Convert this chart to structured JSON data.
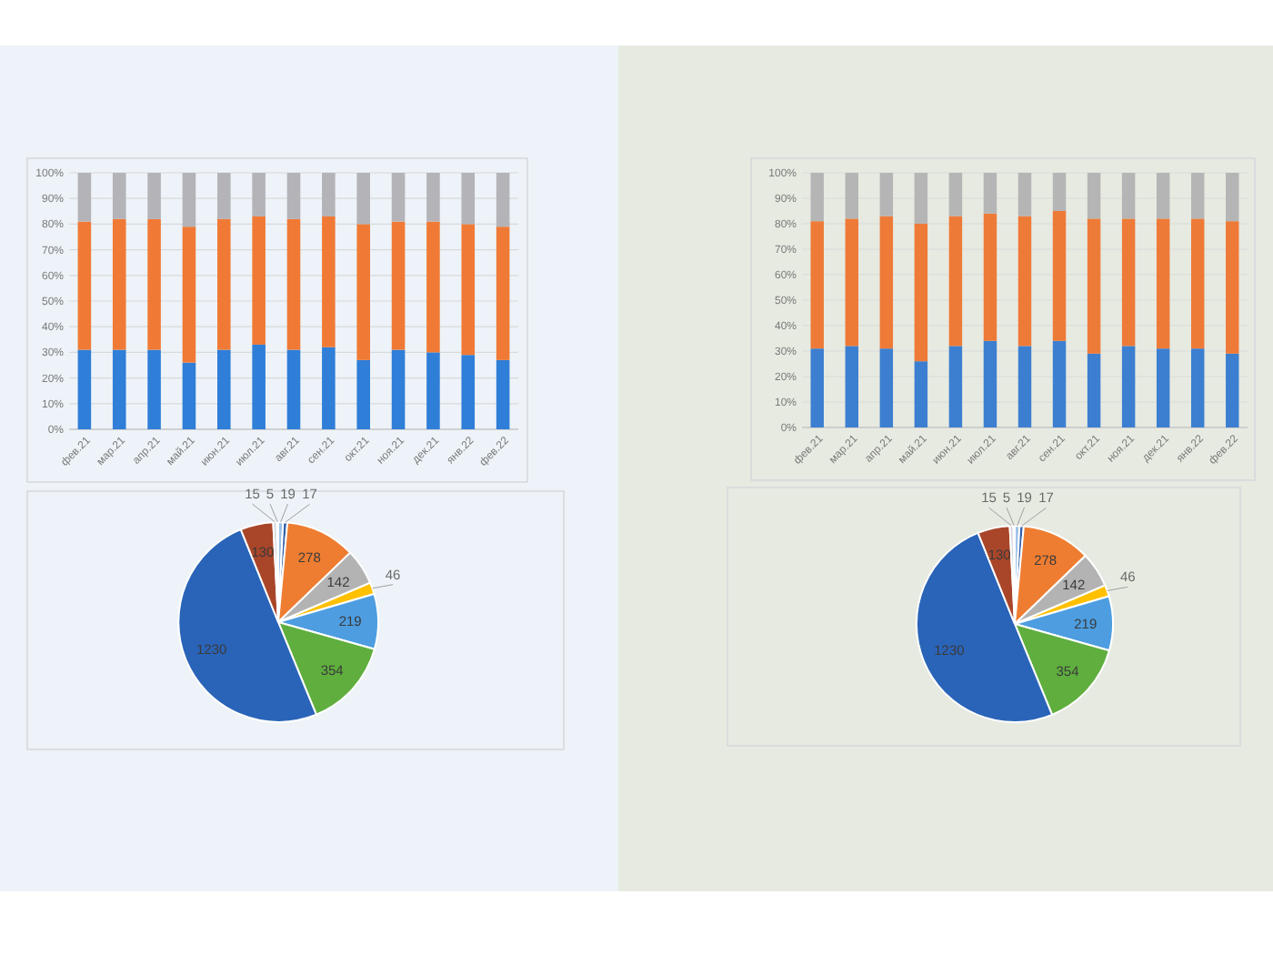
{
  "chart_data": [
    {
      "type": "bar",
      "stacked": true,
      "categories": [
        "фев.21",
        "мар.21",
        "апр.21",
        "май.21",
        "июн.21",
        "июл.21",
        "авг.21",
        "сен.21",
        "окт.21",
        "ноя.21",
        "дек.21",
        "янв.22",
        "фев.22"
      ],
      "series": [
        {
          "color": "#2f7ed8",
          "values": [
            31,
            31,
            31,
            26,
            31,
            33,
            31,
            32,
            27,
            31,
            30,
            29,
            27
          ]
        },
        {
          "color": "#f07a35",
          "values": [
            50,
            51,
            51,
            53,
            51,
            50,
            51,
            51,
            53,
            50,
            51,
            51,
            52
          ]
        },
        {
          "color": "#b3b3b8",
          "values": [
            19,
            18,
            18,
            21,
            18,
            17,
            18,
            17,
            20,
            19,
            19,
            20,
            21
          ]
        }
      ],
      "ylim": [
        0,
        100
      ],
      "yticks": [
        {
          "value": 0,
          "label": "0%"
        },
        {
          "value": 10,
          "label": "10%"
        },
        {
          "value": 20,
          "label": "20%"
        },
        {
          "value": 30,
          "label": "30%"
        },
        {
          "value": 40,
          "label": "40%"
        },
        {
          "value": 50,
          "label": "50%"
        },
        {
          "value": 60,
          "label": "60%"
        },
        {
          "value": 70,
          "label": "70%"
        },
        {
          "value": 80,
          "label": "80%"
        },
        {
          "value": 90,
          "label": "90%"
        },
        {
          "value": 100,
          "label": "100%"
        }
      ],
      "grid": "y"
    },
    {
      "type": "pie",
      "categories": [
        null,
        null,
        null,
        null,
        null,
        null,
        null,
        null,
        null,
        null,
        null
      ],
      "values": [
        19,
        17,
        278,
        142,
        46,
        219,
        354,
        1230,
        130,
        15,
        5
      ],
      "colors": [
        "#9fc3e8",
        "#2d5faa",
        "#ee7d32",
        "#b3b3b3",
        "#ffc000",
        "#4d9de0",
        "#5fae3e",
        "#2a64b8",
        "#a9462a",
        "#d2d6dc",
        "#c3cfdd"
      ],
      "data_labels": true
    },
    {
      "type": "bar",
      "stacked": true,
      "categories": [
        "фев.21",
        "мар.21",
        "апр.21",
        "май.21",
        "июн.21",
        "июл.21",
        "авг.21",
        "сен.21",
        "окт.21",
        "ноя.21",
        "дек.21",
        "янв.22",
        "фев.22"
      ],
      "series": [
        {
          "color": "#3c7fd0",
          "values": [
            31,
            32,
            31,
            26,
            32,
            34,
            32,
            34,
            29,
            32,
            31,
            31,
            29
          ]
        },
        {
          "color": "#ee7a38",
          "values": [
            50,
            50,
            52,
            54,
            51,
            50,
            51,
            51,
            53,
            50,
            51,
            51,
            52
          ]
        },
        {
          "color": "#b5b5b5",
          "values": [
            19,
            18,
            17,
            20,
            17,
            16,
            17,
            15,
            18,
            18,
            18,
            18,
            19
          ]
        }
      ],
      "ylim": [
        0,
        100
      ],
      "yticks": [
        {
          "value": 0,
          "label": "0%"
        },
        {
          "value": 10,
          "label": "10%"
        },
        {
          "value": 20,
          "label": "20%"
        },
        {
          "value": 30,
          "label": "30%"
        },
        {
          "value": 40,
          "label": "40%"
        },
        {
          "value": 50,
          "label": "50%"
        },
        {
          "value": 60,
          "label": "60%"
        },
        {
          "value": 70,
          "label": "70%"
        },
        {
          "value": 80,
          "label": "80%"
        },
        {
          "value": 90,
          "label": "90%"
        },
        {
          "value": 100,
          "label": "100%"
        }
      ],
      "grid": "y"
    },
    {
      "type": "pie",
      "categories": [
        null,
        null,
        null,
        null,
        null,
        null,
        null,
        null,
        null,
        null,
        null
      ],
      "values": [
        19,
        17,
        278,
        142,
        46,
        219,
        354,
        1230,
        130,
        15,
        5
      ],
      "colors": [
        "#9fc3e8",
        "#2d5faa",
        "#ee7d32",
        "#b3b3b3",
        "#ffc000",
        "#4d9de0",
        "#5fae3e",
        "#2a64b8",
        "#a9462a",
        "#d2d6dc",
        "#c3cfdd"
      ],
      "data_labels": true
    }
  ]
}
